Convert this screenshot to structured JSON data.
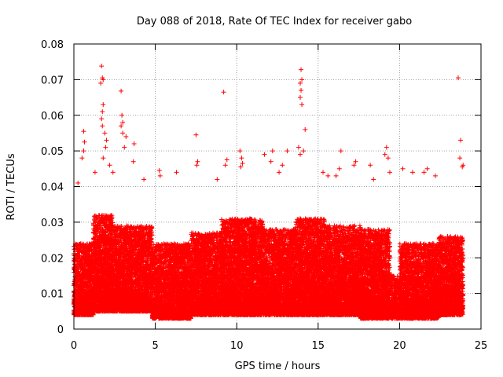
{
  "chart_data": {
    "type": "scatter",
    "title": "Day 088 of 2018, Rate Of TEC Index for receiver gabo",
    "xlabel": "GPS time / hours",
    "ylabel": "ROTI / TECUs",
    "xlim": [
      0,
      25
    ],
    "ylim": [
      0,
      0.08
    ],
    "x_ticks": [
      "0",
      "5",
      "10",
      "15",
      "20",
      "25"
    ],
    "y_ticks": [
      "0",
      "0.01",
      "0.02",
      "0.03",
      "0.04",
      "0.05",
      "0.06",
      "0.07",
      "0.08"
    ],
    "grid": true,
    "marker": "+",
    "color": "#ff0000",
    "series": [
      {
        "points": [
          [
            1.7,
            0.0738
          ],
          [
            1.75,
            0.0705
          ],
          [
            1.8,
            0.07
          ],
          [
            1.65,
            0.069
          ],
          [
            1.8,
            0.063
          ],
          [
            1.75,
            0.061
          ],
          [
            1.7,
            0.059
          ],
          [
            1.75,
            0.057
          ],
          [
            2.9,
            0.0668
          ],
          [
            2.95,
            0.06
          ],
          [
            3.0,
            0.058
          ],
          [
            2.9,
            0.057
          ],
          [
            3.0,
            0.055
          ],
          [
            9.2,
            0.0665
          ],
          [
            13.95,
            0.0728
          ],
          [
            14.0,
            0.07
          ],
          [
            13.9,
            0.069
          ],
          [
            13.95,
            0.067
          ],
          [
            13.9,
            0.065
          ],
          [
            14.0,
            0.063
          ],
          [
            23.6,
            0.0705
          ],
          [
            23.75,
            0.053
          ],
          [
            0.6,
            0.0555
          ],
          [
            0.65,
            0.0525
          ],
          [
            0.6,
            0.05
          ],
          [
            0.5,
            0.048
          ],
          [
            1.9,
            0.055
          ],
          [
            2.0,
            0.053
          ],
          [
            1.95,
            0.051
          ],
          [
            1.8,
            0.048
          ],
          [
            3.2,
            0.054
          ],
          [
            3.1,
            0.051
          ],
          [
            3.7,
            0.052
          ],
          [
            3.65,
            0.047
          ],
          [
            2.4,
            0.044
          ],
          [
            2.2,
            0.046
          ],
          [
            5.25,
            0.0445
          ],
          [
            5.3,
            0.043
          ],
          [
            7.5,
            0.0545
          ],
          [
            7.6,
            0.047
          ],
          [
            7.55,
            0.046
          ],
          [
            9.4,
            0.0475
          ],
          [
            9.3,
            0.046
          ],
          [
            10.2,
            0.05
          ],
          [
            10.3,
            0.048
          ],
          [
            10.35,
            0.0465
          ],
          [
            10.25,
            0.0455
          ],
          [
            11.7,
            0.049
          ],
          [
            12.2,
            0.05
          ],
          [
            12.1,
            0.047
          ],
          [
            12.8,
            0.046
          ],
          [
            13.1,
            0.05
          ],
          [
            13.8,
            0.051
          ],
          [
            13.9,
            0.049
          ],
          [
            14.2,
            0.056
          ],
          [
            14.1,
            0.05
          ],
          [
            16.4,
            0.05
          ],
          [
            16.3,
            0.045
          ],
          [
            17.3,
            0.047
          ],
          [
            17.2,
            0.046
          ],
          [
            18.2,
            0.046
          ],
          [
            19.2,
            0.051
          ],
          [
            19.3,
            0.048
          ],
          [
            19.1,
            0.049
          ],
          [
            19.4,
            0.044
          ],
          [
            20.2,
            0.045
          ],
          [
            20.8,
            0.044
          ],
          [
            21.5,
            0.044
          ],
          [
            21.7,
            0.045
          ],
          [
            23.7,
            0.048
          ],
          [
            23.9,
            0.046
          ],
          [
            23.85,
            0.0455
          ],
          [
            15.3,
            0.044
          ],
          [
            15.6,
            0.043
          ],
          [
            8.8,
            0.042
          ],
          [
            6.3,
            0.044
          ],
          [
            4.3,
            0.042
          ],
          [
            0.25,
            0.041
          ],
          [
            1.3,
            0.044
          ],
          [
            16.1,
            0.043
          ],
          [
            18.4,
            0.042
          ],
          [
            22.2,
            0.043
          ],
          [
            12.6,
            0.044
          ]
        ]
      }
    ],
    "dense_clusters": [
      {
        "x": [
          0.0,
          1.2
        ],
        "y": [
          0.004,
          0.024
        ]
      },
      {
        "x": [
          1.2,
          2.4
        ],
        "y": [
          0.005,
          0.032
        ]
      },
      {
        "x": [
          2.4,
          4.8
        ],
        "y": [
          0.005,
          0.029
        ]
      },
      {
        "x": [
          4.8,
          7.2
        ],
        "y": [
          0.003,
          0.024
        ]
      },
      {
        "x": [
          7.2,
          9.0
        ],
        "y": [
          0.004,
          0.027
        ]
      },
      {
        "x": [
          9.0,
          11.6
        ],
        "y": [
          0.004,
          0.031
        ]
      },
      {
        "x": [
          11.6,
          13.6
        ],
        "y": [
          0.004,
          0.028
        ]
      },
      {
        "x": [
          13.6,
          15.4
        ],
        "y": [
          0.004,
          0.031
        ]
      },
      {
        "x": [
          15.4,
          17.6
        ],
        "y": [
          0.004,
          0.029
        ]
      },
      {
        "x": [
          17.6,
          19.4
        ],
        "y": [
          0.003,
          0.028
        ]
      },
      {
        "x": [
          19.4,
          20.0
        ],
        "y": [
          0.003,
          0.015
        ]
      },
      {
        "x": [
          20.0,
          22.4
        ],
        "y": [
          0.003,
          0.024
        ]
      },
      {
        "x": [
          22.4,
          23.9
        ],
        "y": [
          0.004,
          0.026
        ]
      }
    ]
  }
}
